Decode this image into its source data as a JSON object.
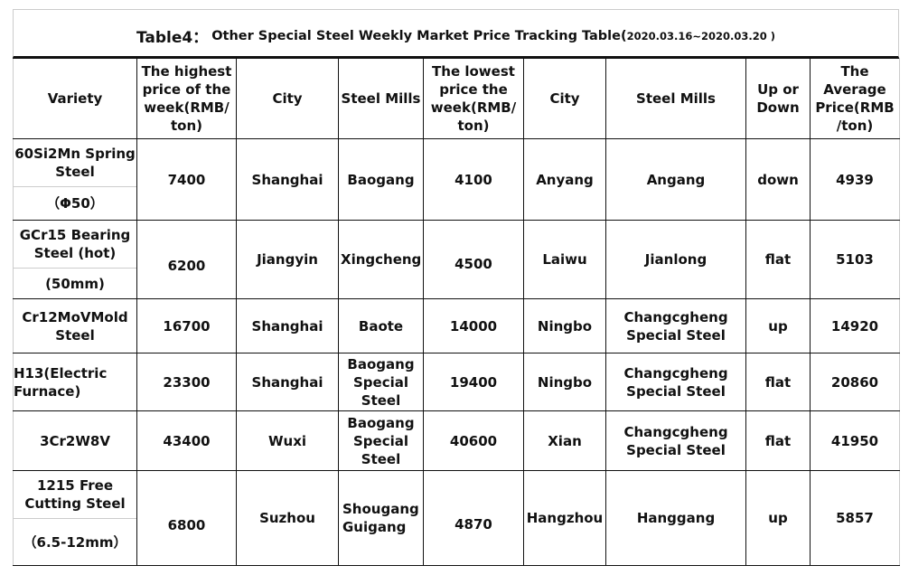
{
  "title": {
    "label": "Table4：",
    "text": "Other Special Steel Weekly Market Price Tracking Table(",
    "date": "2020.03.16~2020.03.20 )"
  },
  "headers": [
    "Variety",
    "The highest price of the week(RMB/ ton)",
    "City",
    "Steel Mills",
    "The lowest price the week(RMB/ ton)",
    "City",
    "Steel Mills",
    "Up or Down",
    "The Average Price(RMB /ton)"
  ],
  "rows": [
    {
      "variety": "60Si2Mn Spring Steel",
      "spec": "（Φ50）",
      "high": "7400",
      "high_city": "Shanghai",
      "high_mill": "Baogang",
      "low": "4100",
      "low_city": "Anyang",
      "low_mill": "Angang",
      "trend": "down",
      "avg": "4939"
    },
    {
      "variety": "GCr15 Bearing Steel (hot)",
      "spec": "(50mm)",
      "high": "6200",
      "high_city": "Jiangyin",
      "high_mill": "Xingcheng",
      "low": "4500",
      "low_city": "Laiwu",
      "low_mill": "Jianlong",
      "trend": "flat",
      "avg": "5103"
    },
    {
      "variety": "Cr12MoVMold Steel",
      "high": "16700",
      "high_city": "Shanghai",
      "high_mill": "Baote",
      "low": "14000",
      "low_city": "Ningbo",
      "low_mill": "Changcgheng Special Steel",
      "trend": "up",
      "avg": "14920"
    },
    {
      "variety": "H13(Electric Furnace)",
      "high": "23300",
      "high_city": "Shanghai",
      "high_mill": "Baogang Special Steel",
      "low": "19400",
      "low_city": "Ningbo",
      "low_mill": "Changcgheng Special Steel",
      "trend": "flat",
      "avg": "20860"
    },
    {
      "variety": "3Cr2W8V",
      "high": "43400",
      "high_city": "Wuxi",
      "high_mill": "Baogang Special Steel",
      "low": "40600",
      "low_city": "Xian",
      "low_mill": "Changcgheng Special Steel",
      "trend": "flat",
      "avg": "41950"
    },
    {
      "variety": "1215 Free Cutting Steel",
      "spec": "（6.5-12mm）",
      "high": "6800",
      "high_city": "Suzhou",
      "high_mill": "Shougang Guigang",
      "low": "4870",
      "low_city": "Hangzhou",
      "low_mill": "Hanggang",
      "trend": "up",
      "avg": "5857"
    }
  ]
}
